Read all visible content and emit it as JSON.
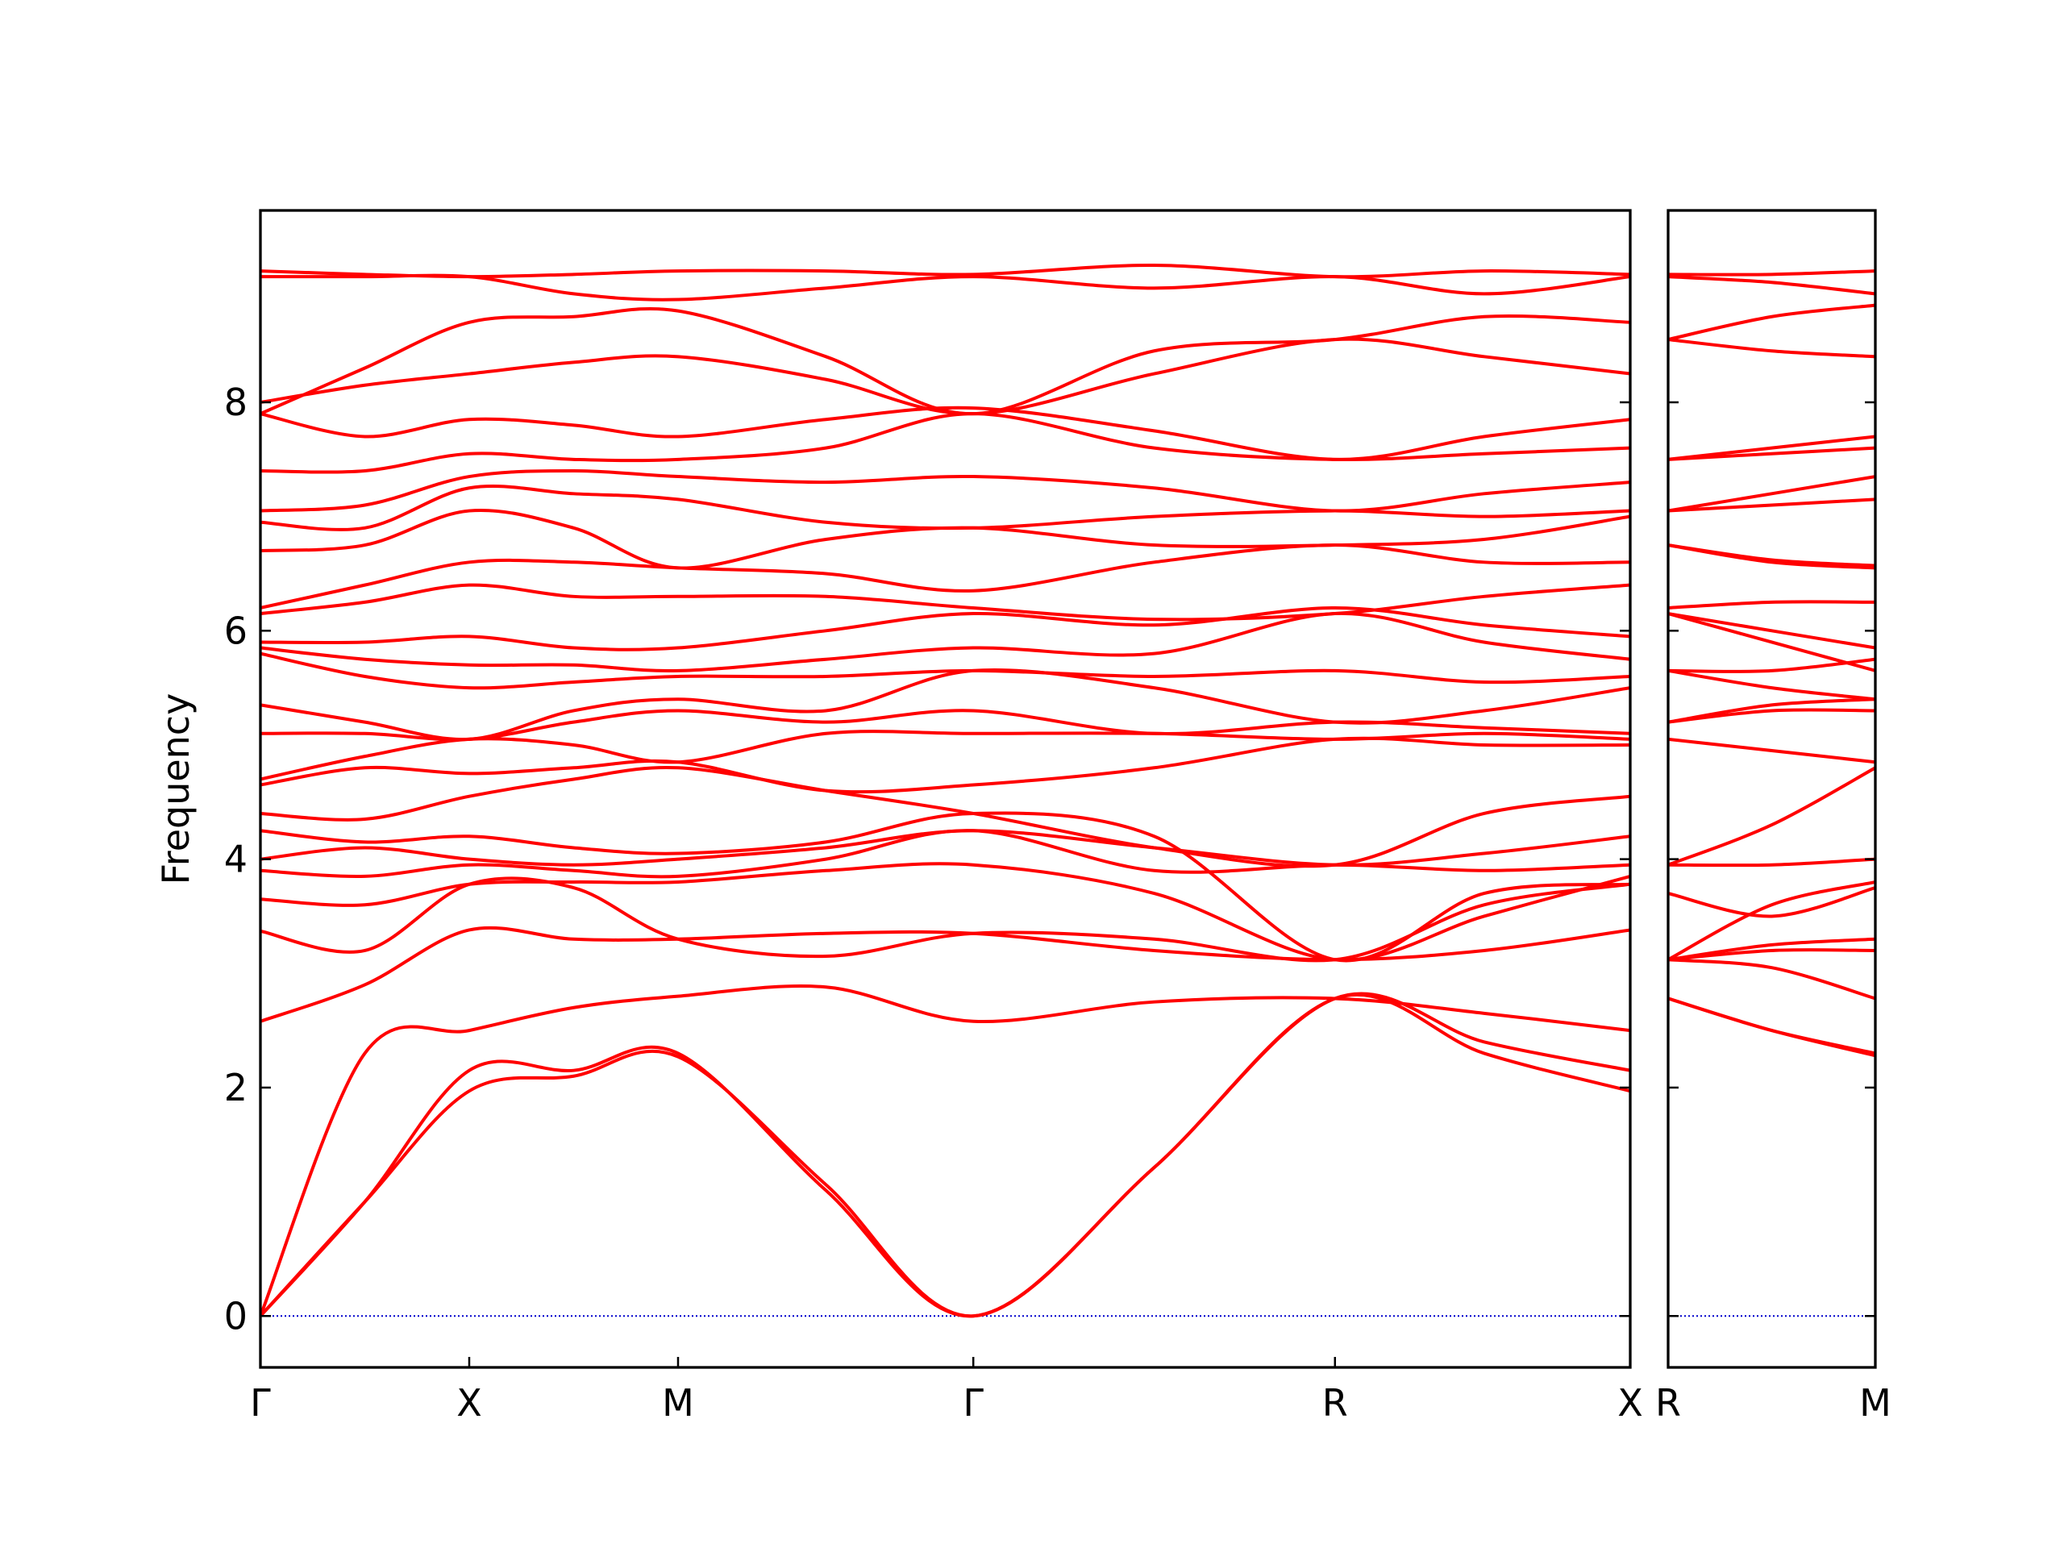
{
  "chart_data": [
    {
      "type": "line",
      "y_label": "Frequency",
      "color": "#ff0000",
      "ytick_labels": true,
      "hline": {
        "value": 0,
        "color": "#0000cc"
      },
      "xlim": [
        0,
        3.28
      ],
      "ylim": [
        -0.45,
        9.68
      ],
      "xticks": [
        {
          "value": 0,
          "label": "Γ"
        },
        {
          "value": 0.5,
          "label": "X"
        },
        {
          "value": 1.0,
          "label": "M"
        },
        {
          "value": 1.707,
          "label": "Γ"
        },
        {
          "value": 2.573,
          "label": "R"
        },
        {
          "value": 3.28,
          "label": "X"
        }
      ],
      "yticks": [
        0,
        2,
        4,
        6,
        8
      ],
      "x": [
        0,
        0.25,
        0.5,
        0.75,
        1.0,
        1.354,
        1.707,
        2.14,
        2.573,
        2.93,
        3.28
      ],
      "series": [
        {
          "values": [
            0,
            1.0,
            1.97,
            2.1,
            2.27,
            1.15,
            0,
            1.3,
            2.78,
            2.3,
            1.97
          ]
        },
        {
          "values": [
            0,
            1.0,
            2.15,
            2.15,
            2.3,
            1.1,
            0,
            1.3,
            2.78,
            2.4,
            2.15
          ]
        },
        {
          "values": [
            0,
            2.3,
            2.5,
            2.7,
            2.8,
            2.88,
            2.58,
            2.75,
            2.78,
            2.65,
            2.5
          ]
        },
        {
          "values": [
            2.58,
            2.9,
            3.38,
            3.3,
            3.3,
            3.35,
            3.35,
            3.2,
            3.12,
            3.2,
            3.38
          ]
        },
        {
          "values": [
            3.37,
            3.2,
            3.78,
            3.75,
            3.3,
            3.15,
            3.35,
            3.3,
            3.12,
            3.6,
            3.78
          ]
        },
        {
          "values": [
            3.65,
            3.6,
            3.78,
            3.8,
            3.8,
            3.9,
            3.95,
            3.7,
            3.12,
            3.5,
            3.85
          ]
        },
        {
          "values": [
            3.9,
            3.85,
            3.95,
            3.9,
            3.85,
            4.0,
            4.25,
            3.9,
            3.95,
            3.9,
            3.95
          ]
        },
        {
          "values": [
            4.0,
            4.1,
            4.0,
            3.95,
            4.0,
            4.1,
            4.25,
            4.1,
            3.95,
            4.05,
            4.2
          ]
        },
        {
          "values": [
            4.25,
            4.15,
            4.2,
            4.1,
            4.05,
            4.15,
            4.4,
            4.2,
            3.12,
            3.7,
            3.78
          ]
        },
        {
          "values": [
            4.4,
            4.35,
            4.55,
            4.7,
            4.8,
            4.6,
            4.4,
            4.1,
            3.95,
            4.4,
            4.55
          ]
        },
        {
          "values": [
            4.65,
            4.8,
            4.75,
            4.8,
            4.85,
            4.6,
            4.65,
            4.8,
            5.05,
            5.0,
            5.0
          ]
        },
        {
          "values": [
            4.7,
            4.9,
            5.05,
            5.0,
            4.85,
            5.1,
            5.1,
            5.1,
            5.05,
            5.1,
            5.05
          ]
        },
        {
          "values": [
            5.1,
            5.1,
            5.05,
            5.2,
            5.3,
            5.2,
            5.3,
            5.1,
            5.2,
            5.15,
            5.1
          ]
        },
        {
          "values": [
            5.35,
            5.2,
            5.05,
            5.3,
            5.4,
            5.3,
            5.65,
            5.5,
            5.2,
            5.3,
            5.5
          ]
        },
        {
          "values": [
            5.8,
            5.6,
            5.5,
            5.55,
            5.6,
            5.6,
            5.65,
            5.6,
            5.65,
            5.55,
            5.6
          ]
        },
        {
          "values": [
            5.85,
            5.75,
            5.7,
            5.7,
            5.65,
            5.75,
            5.85,
            5.8,
            6.15,
            5.9,
            5.75
          ]
        },
        {
          "values": [
            5.9,
            5.9,
            5.95,
            5.85,
            5.85,
            6.0,
            6.15,
            6.05,
            6.2,
            6.05,
            5.95
          ]
        },
        {
          "values": [
            6.15,
            6.25,
            6.4,
            6.3,
            6.3,
            6.3,
            6.2,
            6.1,
            6.15,
            6.3,
            6.4
          ]
        },
        {
          "values": [
            6.2,
            6.4,
            6.6,
            6.6,
            6.55,
            6.5,
            6.35,
            6.6,
            6.75,
            6.6,
            6.6
          ]
        },
        {
          "values": [
            6.7,
            6.75,
            7.05,
            6.9,
            6.55,
            6.8,
            6.9,
            6.75,
            6.75,
            6.8,
            7.0
          ]
        },
        {
          "values": [
            6.95,
            6.9,
            7.25,
            7.2,
            7.15,
            6.95,
            6.9,
            7.0,
            7.05,
            7.0,
            7.05
          ]
        },
        {
          "values": [
            7.05,
            7.1,
            7.35,
            7.4,
            7.35,
            7.3,
            7.35,
            7.25,
            7.05,
            7.2,
            7.3
          ]
        },
        {
          "values": [
            7.4,
            7.4,
            7.55,
            7.5,
            7.5,
            7.6,
            7.9,
            7.6,
            7.5,
            7.55,
            7.6
          ]
        },
        {
          "values": [
            7.9,
            7.7,
            7.85,
            7.8,
            7.7,
            7.85,
            7.95,
            7.75,
            7.5,
            7.7,
            7.85
          ]
        },
        {
          "values": [
            8.0,
            8.15,
            8.25,
            8.35,
            8.4,
            8.2,
            7.9,
            8.25,
            8.55,
            8.4,
            8.25
          ]
        },
        {
          "values": [
            7.9,
            8.3,
            8.7,
            8.75,
            8.8,
            8.4,
            7.9,
            8.45,
            8.55,
            8.75,
            8.7
          ]
        },
        {
          "values": [
            9.1,
            9.1,
            9.1,
            8.95,
            8.9,
            9.0,
            9.1,
            9.0,
            9.1,
            8.95,
            9.1
          ]
        },
        {
          "values": [
            9.15,
            9.12,
            9.1,
            9.12,
            9.15,
            9.15,
            9.12,
            9.2,
            9.1,
            9.15,
            9.12
          ]
        }
      ]
    },
    {
      "type": "line",
      "color": "#ff0000",
      "ytick_labels": false,
      "hline": {
        "value": 0,
        "color": "#0000cc"
      },
      "xlim": [
        0,
        0.5
      ],
      "ylim": [
        -0.45,
        9.68
      ],
      "xticks": [
        {
          "value": 0,
          "label": "R"
        },
        {
          "value": 0.5,
          "label": "M"
        }
      ],
      "yticks": [
        0,
        2,
        4,
        6,
        8
      ],
      "x": [
        0,
        0.25,
        0.5
      ],
      "series": [
        {
          "values": [
            2.78,
            2.5,
            2.3
          ]
        },
        {
          "values": [
            2.78,
            2.5,
            2.28
          ]
        },
        {
          "values": [
            3.12,
            3.05,
            2.78
          ]
        },
        {
          "values": [
            3.12,
            3.2,
            3.2
          ]
        },
        {
          "values": [
            3.12,
            3.25,
            3.3
          ]
        },
        {
          "values": [
            3.7,
            3.5,
            3.75
          ]
        },
        {
          "values": [
            3.12,
            3.6,
            3.8
          ]
        },
        {
          "values": [
            3.95,
            3.95,
            4.0
          ]
        },
        {
          "values": [
            3.95,
            4.3,
            4.8
          ]
        },
        {
          "values": [
            5.05,
            4.95,
            4.85
          ]
        },
        {
          "values": [
            5.2,
            5.3,
            5.3
          ]
        },
        {
          "values": [
            5.2,
            5.35,
            5.4
          ]
        },
        {
          "values": [
            5.65,
            5.65,
            5.75
          ]
        },
        {
          "values": [
            5.65,
            5.5,
            5.4
          ]
        },
        {
          "values": [
            6.15,
            5.9,
            5.65
          ]
        },
        {
          "values": [
            6.15,
            6.0,
            5.85
          ]
        },
        {
          "values": [
            6.2,
            6.25,
            6.25
          ]
        },
        {
          "values": [
            6.75,
            6.6,
            6.55
          ]
        },
        {
          "values": [
            6.75,
            6.62,
            6.57
          ]
        },
        {
          "values": [
            7.05,
            7.2,
            7.35
          ]
        },
        {
          "values": [
            7.05,
            7.1,
            7.15
          ]
        },
        {
          "values": [
            7.5,
            7.6,
            7.7
          ]
        },
        {
          "values": [
            7.5,
            7.55,
            7.6
          ]
        },
        {
          "values": [
            8.55,
            8.45,
            8.4
          ]
        },
        {
          "values": [
            8.55,
            8.75,
            8.85
          ]
        },
        {
          "values": [
            9.1,
            9.05,
            8.95
          ]
        },
        {
          "values": [
            9.12,
            9.12,
            9.15
          ]
        }
      ]
    }
  ]
}
